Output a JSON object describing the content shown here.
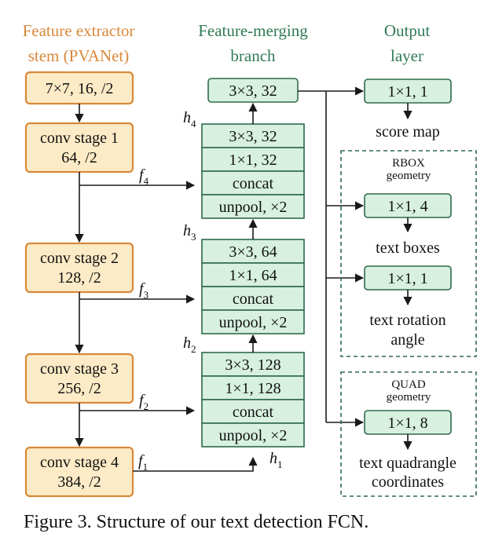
{
  "colors": {
    "stem_text": "#d9893a",
    "merge_text": "#2f7a55",
    "output_text": "#2f7a55",
    "stem_fill": "#fcebc6",
    "stem_stroke": "#d9893a",
    "green_fill": "#d7f0df",
    "green_stroke": "#2f6a4a"
  },
  "titles": {
    "stem_line1": "Feature extractor",
    "stem_line2": "stem (PVANet)",
    "merge_line1": "Feature-merging",
    "merge_line2": "branch",
    "output_line1": "Output",
    "output_line2": "layer"
  },
  "stem": {
    "input": "7×7, 16, /2",
    "stage1_name": "conv stage 1",
    "stage1_spec": "64, /2",
    "stage2_name": "conv stage 2",
    "stage2_spec": "128, /2",
    "stage3_name": "conv stage 3",
    "stage3_spec": "256, /2",
    "stage4_name": "conv stage 4",
    "stage4_spec": "384, /2"
  },
  "features": {
    "f": "f",
    "f4": "4",
    "f3": "3",
    "f2": "2",
    "f1": "1"
  },
  "hidden": {
    "h": "h",
    "h4": "4",
    "h3": "3",
    "h2": "2",
    "h1": "1"
  },
  "merge": {
    "top": "3×3, 32",
    "block4": [
      "3×3, 32",
      "1×1, 32",
      "concat",
      "unpool, ×2"
    ],
    "block3": [
      "3×3, 64",
      "1×1, 64",
      "concat",
      "unpool, ×2"
    ],
    "block2": [
      "3×3, 128",
      "1×1, 128",
      "concat",
      "unpool, ×2"
    ]
  },
  "output": {
    "score_conv": "1×1, 1",
    "score_label": "score map",
    "rbox_title1": "RBOX",
    "rbox_title2": "geometry",
    "rbox_conv1": "1×1, 4",
    "rbox_label1": "text boxes",
    "rbox_conv2": "1×1, 1",
    "rbox_label2a": "text rotation",
    "rbox_label2b": "angle",
    "quad_title1": "QUAD",
    "quad_title2": "geometry",
    "quad_conv": "1×1, 8",
    "quad_label_a": "text quadrangle",
    "quad_label_b": "coordinates"
  },
  "caption": "Figure 3. Structure of our text detection FCN."
}
